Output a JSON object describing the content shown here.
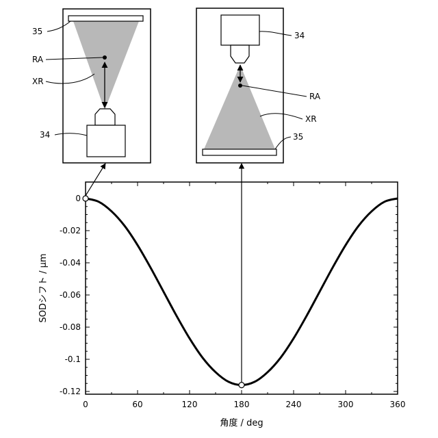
{
  "chart_data": {
    "type": "line",
    "xlabel": "角度 / deg",
    "ylabel": "SODシフト / μm",
    "xlim": [
      0,
      360
    ],
    "ylim": [
      -0.12,
      0.01
    ],
    "xticks": [
      "0",
      "60",
      "120",
      "180",
      "240",
      "300",
      "360"
    ],
    "yticks": [
      "0",
      "-0.02",
      "-0.04",
      "-0.06",
      "-0.08",
      "-0.1",
      "-0.12"
    ],
    "grid": false,
    "series": [
      {
        "x": [
          0,
          15,
          30,
          45,
          60,
          75,
          90,
          105,
          120,
          135,
          150,
          165,
          180,
          195,
          210,
          225,
          240,
          255,
          270,
          285,
          300,
          315,
          330,
          345,
          360
        ],
        "y": [
          0,
          -0.002,
          -0.008,
          -0.017,
          -0.029,
          -0.043,
          -0.058,
          -0.073,
          -0.087,
          -0.099,
          -0.108,
          -0.114,
          -0.116,
          -0.114,
          -0.108,
          -0.099,
          -0.087,
          -0.073,
          -0.058,
          -0.043,
          -0.029,
          -0.017,
          -0.008,
          -0.002,
          0
        ]
      }
    ],
    "markers": [
      {
        "x": 0,
        "y": 0
      },
      {
        "x": 180,
        "y": -0.116
      }
    ]
  },
  "insets": {
    "left": {
      "label_detector": "35",
      "label_rotation_axis": "RA",
      "label_xray": "XR",
      "label_source": "34"
    },
    "right": {
      "label_source": "34",
      "label_rotation_axis": "RA",
      "label_xray": "XR",
      "label_detector": "35"
    }
  },
  "colors": {
    "beam": "#b8b8b8",
    "line": "#000000"
  }
}
